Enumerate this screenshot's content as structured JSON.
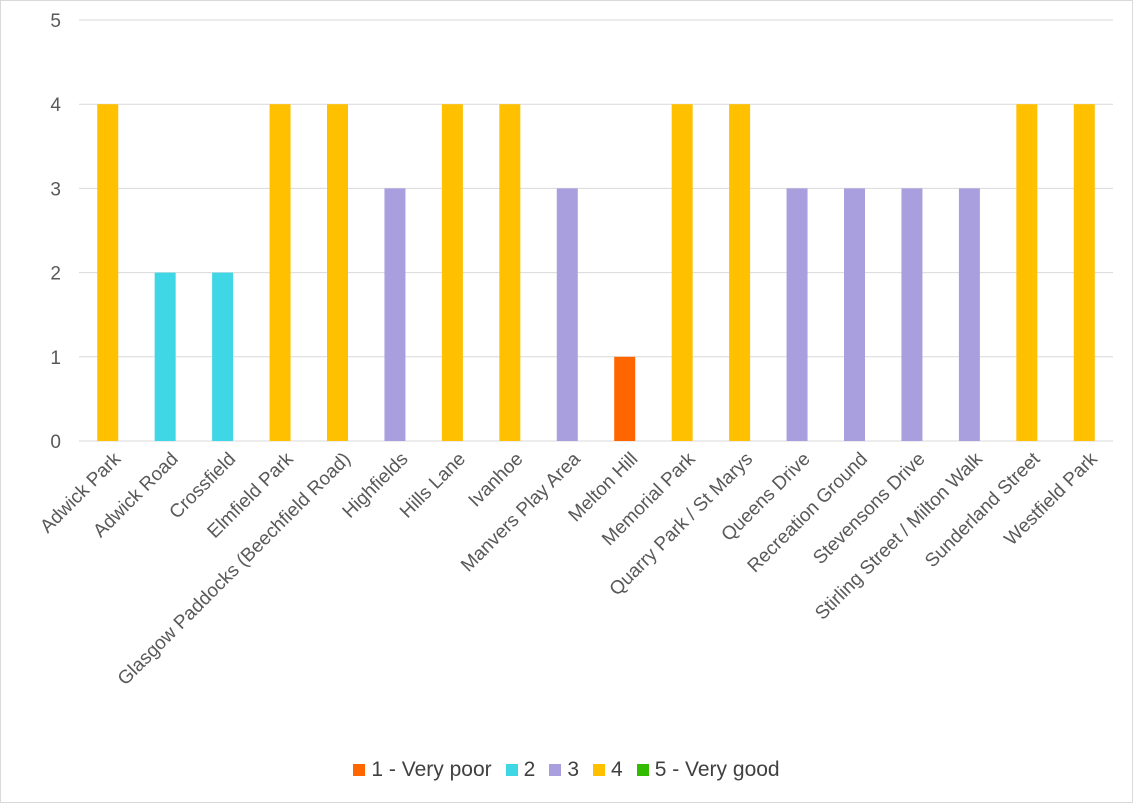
{
  "chart_data": {
    "type": "bar",
    "categories": [
      "Adwick Park",
      "Adwick Road",
      "Crossfield",
      "Elmfield Park",
      "Glasgow Paddocks (Beechfield Road)",
      "Highfields",
      "Hills Lane",
      "Ivanhoe",
      "Manvers Play Area",
      "Melton Hill",
      "Memorial Park",
      "Quarry Park / St Marys",
      "Queens Drive",
      "Recreation Ground",
      "Stevensons Drive",
      "Stirling Street / Milton Walk",
      "Sunderland Street",
      "Westfield Park"
    ],
    "series": [
      {
        "name": "1 - Very poor",
        "color": "#ff6600",
        "values": [
          null,
          null,
          null,
          null,
          null,
          null,
          null,
          null,
          null,
          1,
          null,
          null,
          null,
          null,
          null,
          null,
          null,
          null
        ]
      },
      {
        "name": "2",
        "color": "#3fd7e6",
        "values": [
          null,
          2,
          2,
          null,
          null,
          null,
          null,
          null,
          null,
          null,
          null,
          null,
          null,
          null,
          null,
          null,
          null,
          null
        ]
      },
      {
        "name": "3",
        "color": "#a99fde",
        "values": [
          null,
          null,
          null,
          null,
          null,
          3,
          null,
          null,
          3,
          null,
          null,
          null,
          3,
          3,
          3,
          3,
          null,
          null
        ]
      },
      {
        "name": "4",
        "color": "#ffc000",
        "values": [
          4,
          null,
          null,
          4,
          4,
          null,
          4,
          4,
          null,
          null,
          4,
          4,
          null,
          null,
          null,
          null,
          4,
          4
        ]
      },
      {
        "name": "5 - Very good",
        "color": "#33bb00",
        "values": [
          null,
          null,
          null,
          null,
          null,
          null,
          null,
          null,
          null,
          null,
          null,
          null,
          null,
          null,
          null,
          null,
          null,
          null
        ]
      }
    ],
    "yticks": [
      0,
      1,
      2,
      3,
      4,
      5
    ],
    "ylim": [
      0,
      5
    ],
    "grid": true,
    "legend_position": "bottom",
    "title": "",
    "xlabel": "",
    "ylabel": ""
  }
}
